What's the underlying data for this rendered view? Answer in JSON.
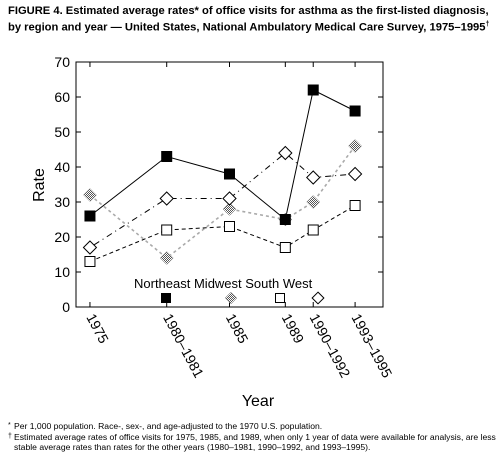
{
  "title": "FIGURE 4. Estimated average rates* of office visits for asthma as the first-listed diagnosis, by region and year — United States, National Ambulatory Medical Care Survey, 1975–1995",
  "title_mark": "†",
  "footnotes": [
    {
      "mark": "*",
      "text": "Per 1,000 population. Race-, sex-, and age-adjusted to the 1970 U.S. population."
    },
    {
      "mark": "†",
      "text": "Estimated average rates of office visits for 1975, 1985, and 1989, when only 1 year of data were available for analysis, are less stable average rates than rates for the other years (1980–1981, 1990–1992, and 1993–1995)."
    }
  ],
  "chart_data": {
    "type": "line",
    "categories": [
      "1975",
      "1980–1981",
      "1985",
      "1989",
      "1990–1992",
      "1993–1995"
    ],
    "x": [
      1975,
      1980.5,
      1985,
      1989,
      1991,
      1994
    ],
    "xlabel": "Year",
    "ylabel": "Rate",
    "ylim": [
      0,
      70
    ],
    "yticks": [
      0,
      10,
      20,
      30,
      40,
      50,
      60,
      70
    ],
    "grid": false,
    "legend_position": "inside-bottom",
    "series": [
      {
        "name": "Northeast",
        "values": [
          26,
          43,
          38,
          25,
          62,
          56
        ],
        "color": "#000000",
        "marker": "filled-square",
        "dash": ""
      },
      {
        "name": "Midwest",
        "values": [
          32,
          14,
          28,
          25,
          30,
          46
        ],
        "color": "#aaaaaa",
        "marker": "stipple-diamond",
        "dash": "3,3"
      },
      {
        "name": "South",
        "values": [
          13,
          22,
          23,
          17,
          22,
          29
        ],
        "color": "#000000",
        "marker": "open-square",
        "dash": "4,3"
      },
      {
        "name": "West",
        "values": [
          17,
          31,
          31,
          44,
          37,
          38
        ],
        "color": "#000000",
        "marker": "open-diamond",
        "dash": "1,4,6,4"
      }
    ]
  }
}
